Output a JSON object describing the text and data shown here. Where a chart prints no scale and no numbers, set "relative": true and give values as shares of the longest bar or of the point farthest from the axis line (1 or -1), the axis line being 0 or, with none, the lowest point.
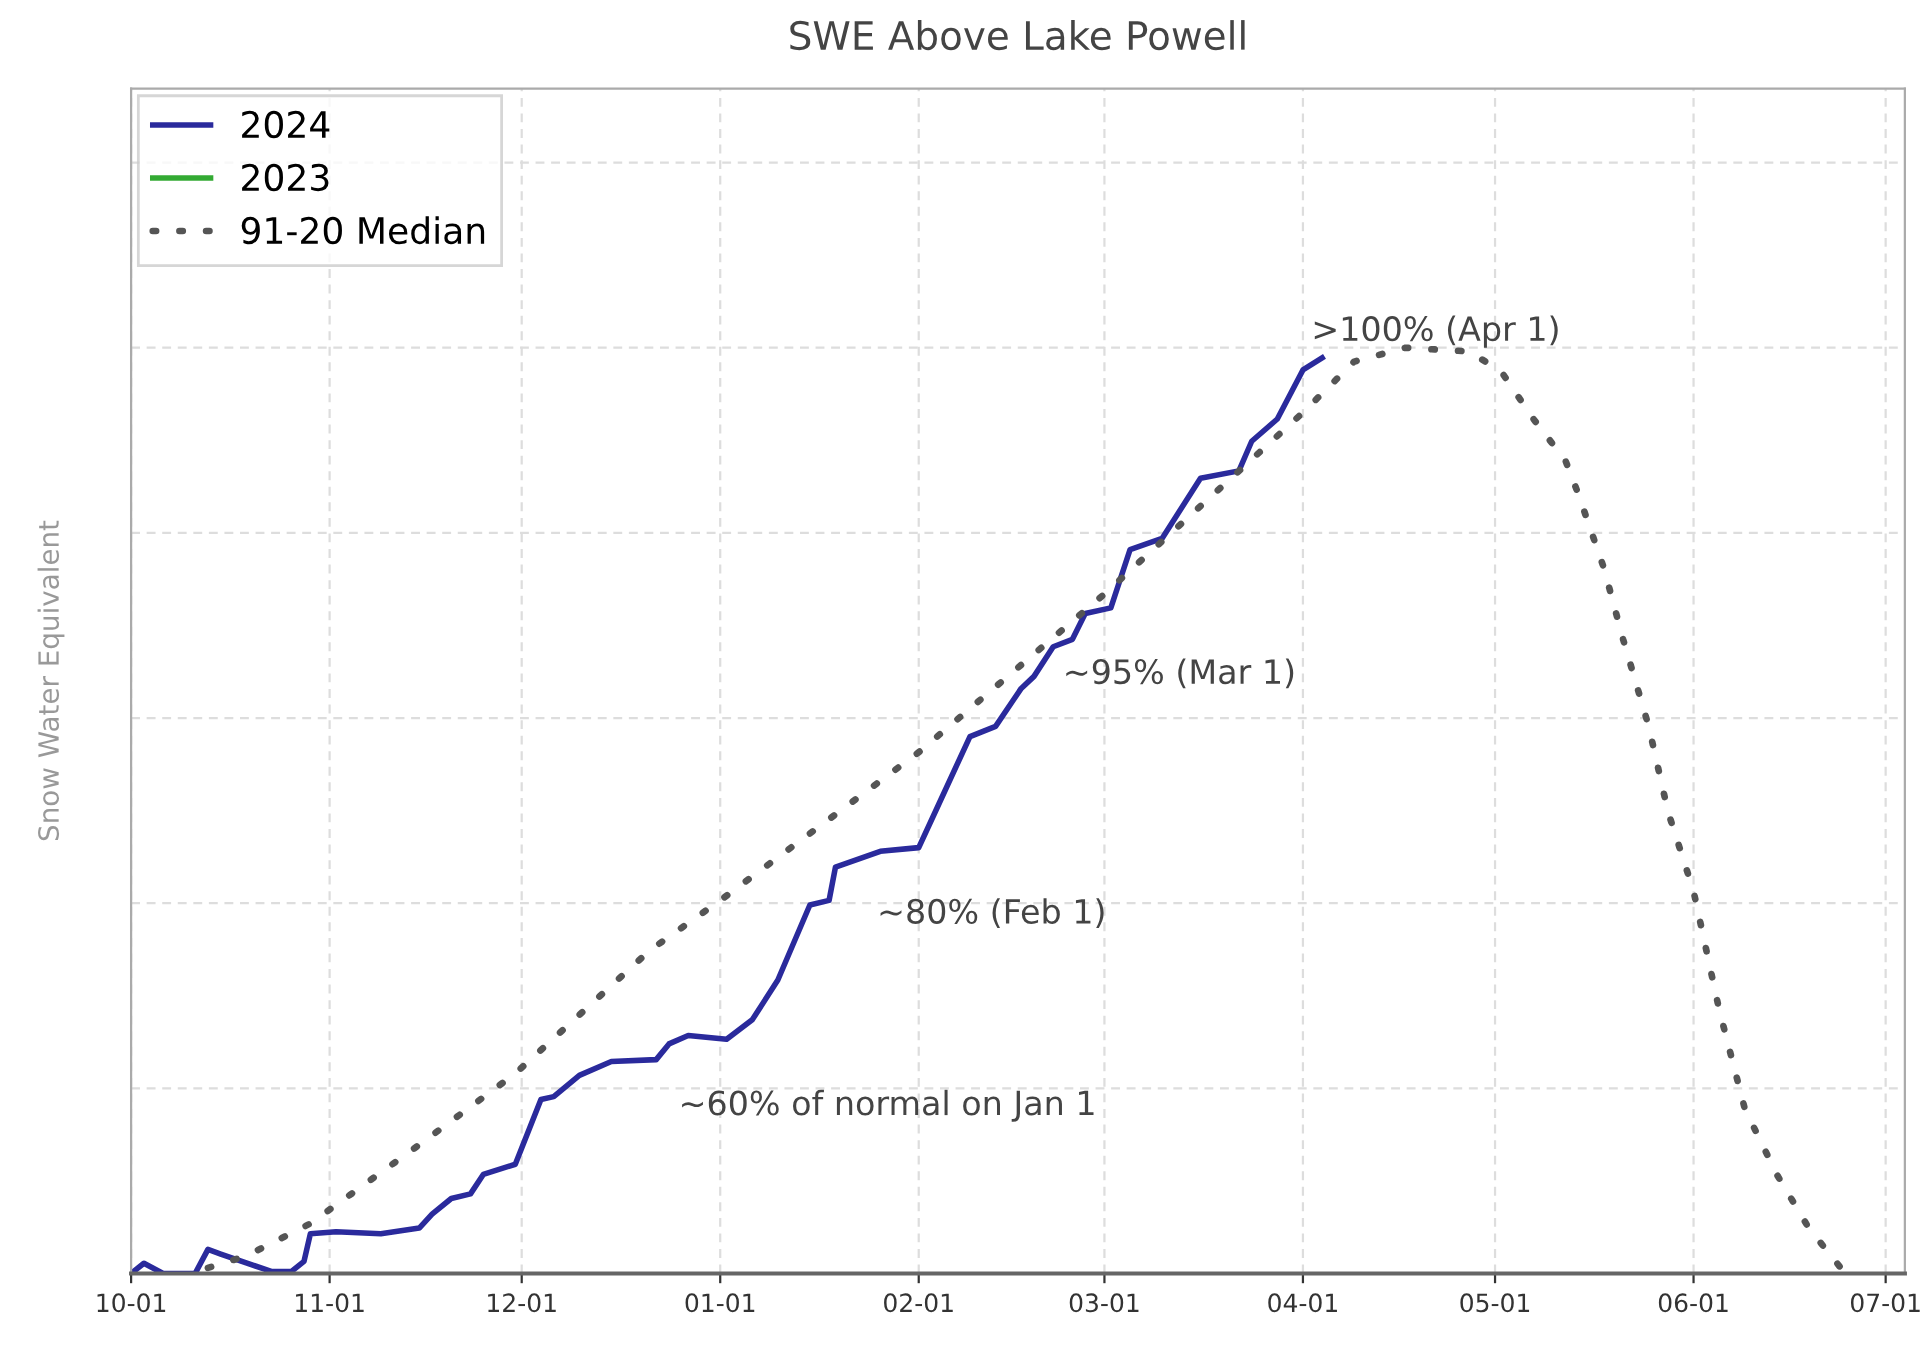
{
  "chart_data": {
    "type": "line",
    "title": "SWE Above Lake Powell",
    "ylabel": "Snow Water Equivalent",
    "relative": true,
    "xlim": [
      "2023-10-01",
      "2024-07-04"
    ],
    "xticks": [
      {
        "value": "2023-10-01",
        "label": "10-01"
      },
      {
        "value": "2023-11-01",
        "label": "11-01"
      },
      {
        "value": "2023-12-01",
        "label": "12-01"
      },
      {
        "value": "2024-01-01",
        "label": "01-01"
      },
      {
        "value": "2024-02-01",
        "label": "02-01"
      },
      {
        "value": "2024-03-01",
        "label": "03-01"
      },
      {
        "value": "2024-04-01",
        "label": "04-01"
      },
      {
        "value": "2024-05-01",
        "label": "05-01"
      },
      {
        "value": "2024-06-01",
        "label": "06-01"
      },
      {
        "value": "2024-07-01",
        "label": "07-01"
      }
    ],
    "series": [
      {
        "name": "2024",
        "color": "#2a2a9c",
        "line_style": "solid",
        "x": [
          "2023-10-01",
          "2023-10-03",
          "2023-10-06",
          "2023-10-11",
          "2023-10-13",
          "2023-10-15",
          "2023-10-20",
          "2023-10-23",
          "2023-10-26",
          "2023-10-28",
          "2023-10-29",
          "2023-11-02",
          "2023-11-09",
          "2023-11-15",
          "2023-11-17",
          "2023-11-20",
          "2023-11-23",
          "2023-11-25",
          "2023-11-30",
          "2023-12-04",
          "2023-12-06",
          "2023-12-10",
          "2023-12-15",
          "2023-12-22",
          "2023-12-24",
          "2023-12-27",
          "2024-01-02",
          "2024-01-06",
          "2024-01-10",
          "2024-01-15",
          "2024-01-18",
          "2024-01-19",
          "2024-01-26",
          "2024-02-01",
          "2024-02-04",
          "2024-02-09",
          "2024-02-13",
          "2024-02-17",
          "2024-02-19",
          "2024-02-22",
          "2024-02-25",
          "2024-02-27",
          "2024-03-02",
          "2024-03-05",
          "2024-03-10",
          "2024-03-16",
          "2024-03-22",
          "2024-03-24",
          "2024-03-28",
          "2024-04-01",
          "2024-04-04"
        ],
        "values": [
          0,
          0.011,
          0,
          0,
          0.026,
          0.021,
          0.009,
          0.002,
          0.002,
          0.013,
          0.043,
          0.045,
          0.043,
          0.049,
          0.064,
          0.081,
          0.086,
          0.107,
          0.118,
          0.188,
          0.191,
          0.214,
          0.229,
          0.231,
          0.248,
          0.257,
          0.253,
          0.274,
          0.317,
          0.398,
          0.403,
          0.439,
          0.456,
          0.46,
          0.505,
          0.58,
          0.591,
          0.632,
          0.645,
          0.677,
          0.685,
          0.713,
          0.719,
          0.782,
          0.794,
          0.859,
          0.867,
          0.899,
          0.923,
          0.976,
          0.989
        ]
      },
      {
        "name": "2023",
        "color": "#33aa33",
        "line_style": "solid"
      },
      {
        "name": "91-20 Median",
        "color": "#555555",
        "line_style": "dotted",
        "x": [
          "2023-10-13",
          "2023-10-19",
          "2023-10-29",
          "2023-11-15",
          "2023-11-30",
          "2023-12-21",
          "2024-01-01",
          "2024-02-01",
          "2024-03-01",
          "2024-04-01",
          "2024-04-09",
          "2024-04-17",
          "2024-04-27",
          "2024-05-02",
          "2024-05-07",
          "2024-05-12",
          "2024-05-14",
          "2024-05-18",
          "2024-05-21",
          "2024-05-25",
          "2024-05-28",
          "2024-06-01",
          "2024-06-05",
          "2024-06-09",
          "2024-06-14",
          "2024-06-19",
          "2024-06-24"
        ],
        "values": [
          0.006,
          0.019,
          0.054,
          0.139,
          0.216,
          0.349,
          0.403,
          0.563,
          0.734,
          0.93,
          0.985,
          1.0,
          0.996,
          0.974,
          0.923,
          0.878,
          0.842,
          0.762,
          0.685,
          0.591,
          0.499,
          0.413,
          0.285,
          0.178,
          0.107,
          0.049,
          0.006
        ]
      }
    ],
    "annotations": [
      {
        "text": "~60% of normal on Jan 1",
        "x": "2024-01-01",
        "y": 0.253
      },
      {
        "text": "~80% (Feb 1)",
        "x": "2024-02-01",
        "y": 0.46
      },
      {
        "text": "~95% (Mar 1)",
        "x": "2024-03-01",
        "y": 0.719
      },
      {
        "text": ">100% (Apr 1)",
        "x": "2024-04-01",
        "y": 0.976
      }
    ],
    "grid": true,
    "legend": "top left"
  }
}
